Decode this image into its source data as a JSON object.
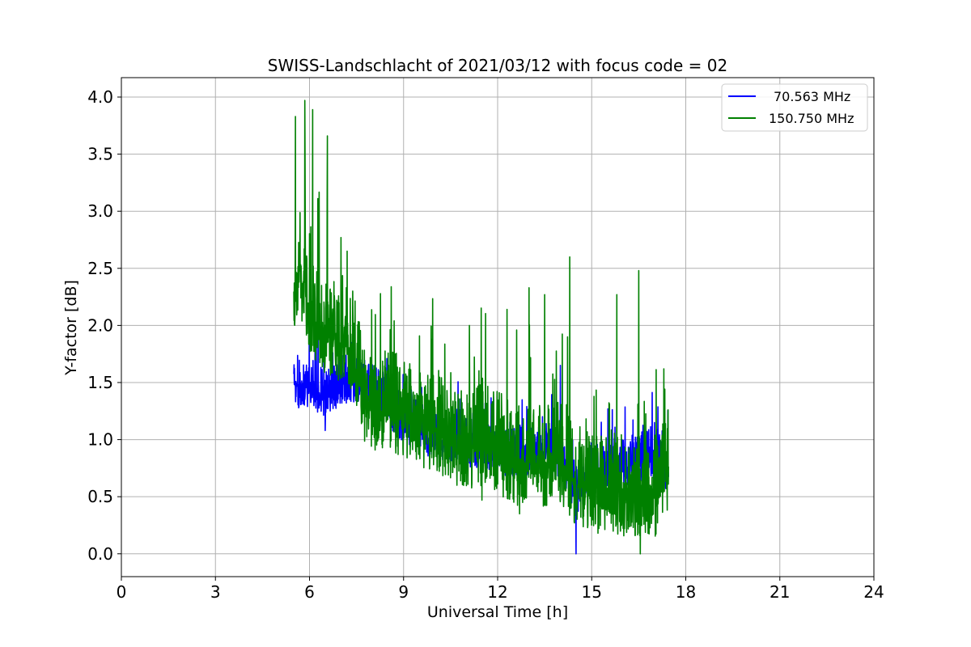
{
  "chart_data": {
    "type": "line",
    "title": "SWISS-Landschlacht of 2021/03/12 with focus code = 02",
    "xlabel": "Universal Time [h]",
    "ylabel": "Y-factor [dB]",
    "xlim": [
      0,
      24
    ],
    "ylim": [
      -0.2,
      4.17
    ],
    "xticks": [
      "0",
      "3",
      "6",
      "9",
      "12",
      "15",
      "18",
      "21",
      "24"
    ],
    "yticks": [
      "0.0",
      "0.5",
      "1.0",
      "1.5",
      "2.0",
      "2.5",
      "3.0",
      "3.5",
      "4.0"
    ],
    "grid": true,
    "legend_position": "top-right",
    "series": [
      {
        "name": "70.563 MHz",
        "color": "#0000ff",
        "anchors": [
          [
            5.5,
            1.5
          ],
          [
            5.8,
            1.4
          ],
          [
            6.1,
            1.45
          ],
          [
            6.5,
            1.35
          ],
          [
            7.0,
            1.5
          ],
          [
            7.5,
            1.5
          ],
          [
            8.0,
            1.45
          ],
          [
            8.5,
            1.3
          ],
          [
            9.0,
            1.15
          ],
          [
            9.5,
            1.05
          ],
          [
            10.0,
            1.0
          ],
          [
            10.5,
            0.95
          ],
          [
            11.0,
            0.95
          ],
          [
            11.5,
            0.9
          ],
          [
            12.0,
            0.85
          ],
          [
            12.5,
            0.85
          ],
          [
            13.0,
            0.85
          ],
          [
            13.5,
            0.9
          ],
          [
            14.0,
            0.85
          ],
          [
            14.3,
            0.65
          ],
          [
            14.5,
            0.5
          ],
          [
            15.0,
            0.7
          ],
          [
            15.5,
            0.65
          ],
          [
            16.0,
            0.75
          ],
          [
            16.5,
            0.8
          ],
          [
            17.0,
            0.85
          ],
          [
            17.45,
            0.7
          ]
        ],
        "extremes": [
          [
            14.5,
            0.0
          ],
          [
            6.5,
            1.08
          ],
          [
            14.0,
            1.65
          ],
          [
            17.0,
            1.15
          ]
        ]
      },
      {
        "name": "150.750 MHz",
        "color": "#008000",
        "anchors": [
          [
            5.5,
            2.3
          ],
          [
            5.7,
            2.45
          ],
          [
            5.9,
            2.2
          ],
          [
            6.2,
            2.0
          ],
          [
            6.6,
            1.9
          ],
          [
            7.0,
            1.85
          ],
          [
            7.4,
            1.75
          ],
          [
            7.7,
            1.35
          ],
          [
            8.0,
            1.25
          ],
          [
            8.5,
            1.25
          ],
          [
            9.0,
            1.2
          ],
          [
            9.5,
            1.05
          ],
          [
            10.0,
            1.1
          ],
          [
            10.5,
            0.95
          ],
          [
            11.0,
            0.9
          ],
          [
            11.5,
            0.95
          ],
          [
            12.0,
            0.9
          ],
          [
            12.5,
            0.75
          ],
          [
            13.0,
            0.8
          ],
          [
            13.5,
            0.75
          ],
          [
            14.0,
            0.8
          ],
          [
            14.5,
            0.6
          ],
          [
            15.0,
            0.55
          ],
          [
            15.5,
            0.55
          ],
          [
            16.0,
            0.5
          ],
          [
            16.5,
            0.5
          ],
          [
            17.0,
            0.45
          ],
          [
            17.45,
            0.75
          ]
        ],
        "extremes": [
          [
            5.55,
            3.83
          ],
          [
            5.85,
            3.97
          ],
          [
            6.1,
            3.89
          ],
          [
            6.57,
            3.66
          ],
          [
            7.2,
            2.65
          ],
          [
            8.7,
            2.04
          ],
          [
            11.1,
            2.0
          ],
          [
            12.3,
            2.14
          ],
          [
            13.0,
            2.33
          ],
          [
            13.5,
            2.27
          ],
          [
            14.3,
            2.6
          ],
          [
            15.8,
            2.27
          ],
          [
            16.5,
            2.48
          ],
          [
            16.55,
            0.0
          ],
          [
            11.5,
            0.47
          ],
          [
            12.7,
            0.35
          ],
          [
            15.2,
            0.18
          ],
          [
            17.3,
            1.62
          ]
        ]
      }
    ]
  }
}
